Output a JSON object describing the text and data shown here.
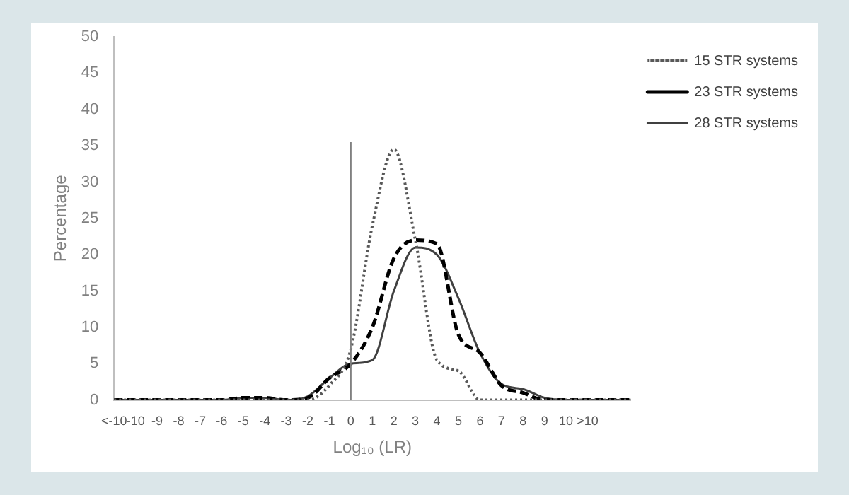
{
  "chart_data": {
    "type": "line",
    "xlabel": "Log₁₀ (LR)",
    "ylabel": "Percentage",
    "categories": [
      "<-10",
      "-10",
      "-9",
      "-8",
      "-7",
      "-6",
      "-5",
      "-4",
      "-3",
      "-2",
      "-1",
      "0",
      "1",
      "2",
      "3",
      "4",
      "5",
      "6",
      "7",
      "8",
      "9",
      "10",
      ">10",
      null,
      null
    ],
    "series": [
      {
        "name": "15 STR systems",
        "color": "#595959",
        "line_style": "dotted",
        "values": [
          0,
          0,
          0,
          0,
          0,
          0,
          0,
          0,
          0,
          0,
          2,
          7,
          24,
          34.5,
          22,
          5.5,
          4,
          0,
          0,
          0,
          0,
          0,
          0,
          0,
          0
        ]
      },
      {
        "name": "23 STR systems",
        "color": "#000000",
        "line_style": "dashed",
        "values": [
          0,
          0,
          0,
          0,
          0,
          0,
          0.3,
          0.3,
          0,
          0.3,
          3,
          5,
          10,
          19.5,
          22,
          21.5,
          9,
          6.5,
          2,
          1,
          0,
          0,
          0,
          0,
          0
        ]
      },
      {
        "name": "28 STR systems",
        "color": "#404040",
        "line_style": "solid",
        "values": [
          0,
          0,
          0,
          0,
          0,
          0,
          0.3,
          0.3,
          0,
          0.5,
          3,
          5,
          5.5,
          15,
          21,
          20,
          14,
          6.5,
          2.2,
          1.5,
          0.3,
          0,
          0,
          0,
          0
        ]
      }
    ],
    "ylim": [
      0,
      50
    ],
    "yticks": [
      0,
      5,
      10,
      15,
      20,
      25,
      30,
      35,
      40,
      45,
      50
    ],
    "ref_lines": [
      {
        "axis": "x",
        "value": "0",
        "color": "#808080"
      }
    ],
    "grid": false,
    "legend": "top right",
    "marker": "none"
  }
}
